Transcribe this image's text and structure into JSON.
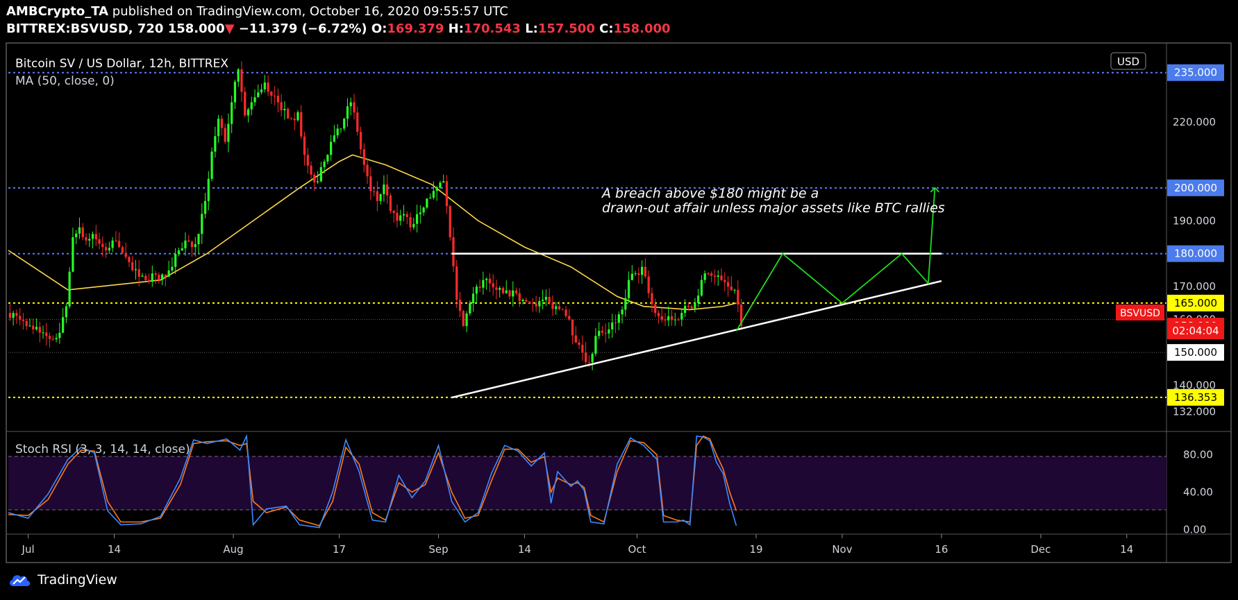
{
  "header": {
    "publisher": "AMBCrypto_TA",
    "published_text": "published on TradingView.com, October 16, 2020 09:55:57 UTC",
    "symbol": "BITTREX:BSVUSD, 720",
    "last": "158.000",
    "change": "−11.379 (−6.72%)",
    "open_label": "O:",
    "open": "169.379",
    "high_label": "H:",
    "high": "170.543",
    "low_label": "L:",
    "low": "157.500",
    "close_label": "C:",
    "close": "158.000"
  },
  "legend": {
    "title": "Bitcoin SV / US Dollar, 12h, BITTREX",
    "ma": "MA (50, close, 0)",
    "stoch": "Stoch RSI (3, 3, 14, 14, close)"
  },
  "annotation": {
    "line1": "A breach above $180 might be a",
    "line2": "drawn-out affair unless major assets like BTC rallies"
  },
  "currency_button": "USD",
  "countdown": "02:04:04",
  "symbol_tag": "BSVUSD",
  "footer": {
    "brand": "TradingView"
  },
  "colors": {
    "up": "#26ff26",
    "down": "#ff2b2b",
    "ma": "#ffd84a",
    "k_line": "#3d8bff",
    "d_line": "#ff7a1a",
    "blue_level": "#5b7cff",
    "yellow_level": "#ffff00",
    "projection": "#1fdc1f",
    "rsi_band": "#1e0733"
  },
  "chart_data": {
    "type": "candlestick",
    "timeframe": "12h",
    "ylim": [
      126,
      244
    ],
    "price_ticks": [
      "220.000",
      "190.000",
      "170.000",
      "160.000",
      "140.000",
      "132.000"
    ],
    "level_labels": [
      {
        "value": 235,
        "label": "235.000",
        "style": "blue"
      },
      {
        "value": 200,
        "label": "200.000",
        "style": "blue"
      },
      {
        "value": 180,
        "label": "180.000",
        "style": "blue"
      },
      {
        "value": 165,
        "label": "165.000",
        "style": "yellow"
      },
      {
        "value": 158,
        "label": "158.000",
        "style": "red"
      },
      {
        "value": 150,
        "label": "150.000",
        "style": "white"
      },
      {
        "value": 136.353,
        "label": "136.353",
        "style": "yellow"
      }
    ],
    "x_ticks": [
      {
        "label": "Jul",
        "date": "2020-07-01"
      },
      {
        "label": "14",
        "date": "2020-07-14"
      },
      {
        "label": "Aug",
        "date": "2020-08-01"
      },
      {
        "label": "17",
        "date": "2020-08-17"
      },
      {
        "label": "Sep",
        "date": "2020-09-01"
      },
      {
        "label": "14",
        "date": "2020-09-14"
      },
      {
        "label": "Oct",
        "date": "2020-10-01"
      },
      {
        "label": "19",
        "date": "2020-10-19"
      },
      {
        "label": "Nov",
        "date": "2020-11-01"
      },
      {
        "label": "16",
        "date": "2020-11-16"
      },
      {
        "label": "Dec",
        "date": "2020-12-01"
      },
      {
        "label": "14",
        "date": "2020-12-14"
      }
    ],
    "xlim_dates": [
      "2020-06-28",
      "2020-12-20"
    ],
    "close_series": [
      [
        "2020-06-28",
        162
      ],
      [
        "2020-06-29",
        160
      ],
      [
        "2020-06-30",
        158
      ],
      [
        "2020-07-01",
        157
      ],
      [
        "2020-07-02",
        156
      ],
      [
        "2020-07-03",
        155
      ],
      [
        "2020-07-04",
        154
      ],
      [
        "2020-07-05",
        156
      ],
      [
        "2020-07-06",
        164
      ],
      [
        "2020-07-07",
        185
      ],
      [
        "2020-07-08",
        188
      ],
      [
        "2020-07-09",
        184
      ],
      [
        "2020-07-10",
        186
      ],
      [
        "2020-07-11",
        183
      ],
      [
        "2020-07-12",
        181
      ],
      [
        "2020-07-13",
        184
      ],
      [
        "2020-07-14",
        182
      ],
      [
        "2020-07-15",
        179
      ],
      [
        "2020-07-16",
        175
      ],
      [
        "2020-07-17",
        173
      ],
      [
        "2020-07-18",
        172
      ],
      [
        "2020-07-19",
        174
      ],
      [
        "2020-07-20",
        172
      ],
      [
        "2020-07-21",
        173
      ],
      [
        "2020-07-22",
        176
      ],
      [
        "2020-07-23",
        181
      ],
      [
        "2020-07-24",
        184
      ],
      [
        "2020-07-25",
        182
      ],
      [
        "2020-07-26",
        186
      ],
      [
        "2020-07-27",
        196
      ],
      [
        "2020-07-28",
        211
      ],
      [
        "2020-07-29",
        221
      ],
      [
        "2020-07-30",
        214
      ],
      [
        "2020-07-31",
        226
      ],
      [
        "2020-08-01",
        236
      ],
      [
        "2020-08-02",
        222
      ],
      [
        "2020-08-03",
        226
      ],
      [
        "2020-08-04",
        229
      ],
      [
        "2020-08-05",
        232
      ],
      [
        "2020-08-06",
        228
      ],
      [
        "2020-08-07",
        226
      ],
      [
        "2020-08-08",
        224
      ],
      [
        "2020-08-09",
        221
      ],
      [
        "2020-08-10",
        223
      ],
      [
        "2020-08-11",
        210
      ],
      [
        "2020-08-12",
        204
      ],
      [
        "2020-08-13",
        202
      ],
      [
        "2020-08-14",
        208
      ],
      [
        "2020-08-15",
        214
      ],
      [
        "2020-08-16",
        218
      ],
      [
        "2020-08-17",
        221
      ],
      [
        "2020-08-18",
        226
      ],
      [
        "2020-08-19",
        217
      ],
      [
        "2020-08-20",
        207
      ],
      [
        "2020-08-21",
        199
      ],
      [
        "2020-08-22",
        196
      ],
      [
        "2020-08-23",
        201
      ],
      [
        "2020-08-24",
        193
      ],
      [
        "2020-08-25",
        190
      ],
      [
        "2020-08-26",
        192
      ],
      [
        "2020-08-27",
        188
      ],
      [
        "2020-08-28",
        192
      ],
      [
        "2020-08-29",
        194
      ],
      [
        "2020-08-30",
        197
      ],
      [
        "2020-08-31",
        200
      ],
      [
        "2020-09-01",
        202
      ],
      [
        "2020-09-02",
        185
      ],
      [
        "2020-09-03",
        166
      ],
      [
        "2020-09-04",
        158
      ],
      [
        "2020-09-05",
        165
      ],
      [
        "2020-09-06",
        170
      ],
      [
        "2020-09-07",
        172
      ],
      [
        "2020-09-08",
        171
      ],
      [
        "2020-09-09",
        169
      ],
      [
        "2020-09-10",
        168
      ],
      [
        "2020-09-11",
        167
      ],
      [
        "2020-09-12",
        168
      ],
      [
        "2020-09-13",
        166
      ],
      [
        "2020-09-14",
        165
      ],
      [
        "2020-09-15",
        164
      ],
      [
        "2020-09-16",
        166
      ],
      [
        "2020-09-17",
        165
      ],
      [
        "2020-09-18",
        164
      ],
      [
        "2020-09-19",
        163
      ],
      [
        "2020-09-20",
        160
      ],
      [
        "2020-09-21",
        153
      ],
      [
        "2020-09-22",
        150
      ],
      [
        "2020-09-23",
        147
      ],
      [
        "2020-09-24",
        155
      ],
      [
        "2020-09-25",
        156
      ],
      [
        "2020-09-26",
        157
      ],
      [
        "2020-09-27",
        159
      ],
      [
        "2020-09-28",
        163
      ],
      [
        "2020-09-29",
        172
      ],
      [
        "2020-09-30",
        174
      ],
      [
        "2020-10-01",
        176
      ],
      [
        "2020-10-02",
        168
      ],
      [
        "2020-10-03",
        162
      ],
      [
        "2020-10-04",
        160
      ],
      [
        "2020-10-05",
        161
      ],
      [
        "2020-10-06",
        160
      ],
      [
        "2020-10-07",
        162
      ],
      [
        "2020-10-08",
        164
      ],
      [
        "2020-10-09",
        165
      ],
      [
        "2020-10-10",
        172
      ],
      [
        "2020-10-11",
        174
      ],
      [
        "2020-10-12",
        173
      ],
      [
        "2020-10-13",
        172
      ],
      [
        "2020-10-14",
        170
      ],
      [
        "2020-10-15",
        169
      ],
      [
        "2020-10-16",
        158
      ]
    ],
    "ma_series": [
      [
        "2020-06-28",
        181
      ],
      [
        "2020-07-07",
        169
      ],
      [
        "2020-07-14",
        170.5
      ],
      [
        "2020-07-21",
        172
      ],
      [
        "2020-07-28",
        180
      ],
      [
        "2020-08-04",
        190
      ],
      [
        "2020-08-11",
        200
      ],
      [
        "2020-08-17",
        208
      ],
      [
        "2020-08-19",
        210
      ],
      [
        "2020-08-24",
        207
      ],
      [
        "2020-08-31",
        201
      ],
      [
        "2020-09-07",
        190
      ],
      [
        "2020-09-14",
        182
      ],
      [
        "2020-09-21",
        176
      ],
      [
        "2020-09-28",
        167
      ],
      [
        "2020-10-02",
        164
      ],
      [
        "2020-10-09",
        163
      ],
      [
        "2020-10-14",
        164
      ],
      [
        "2020-10-16",
        165
      ]
    ],
    "horizontal_levels": [
      {
        "value": 235,
        "style": "blue-dotted"
      },
      {
        "value": 200,
        "style": "blue-dotted"
      },
      {
        "value": 180,
        "style": "blue-dotted"
      },
      {
        "value": 165,
        "style": "yellow-dotted"
      },
      {
        "value": 160,
        "style": "gray-dotted"
      },
      {
        "value": 150,
        "style": "gray-dotted"
      },
      {
        "value": 136.353,
        "style": "yellow-dotted"
      }
    ],
    "trendlines": [
      {
        "name": "resistance",
        "from": [
          "2020-09-03",
          180
        ],
        "to": [
          "2020-11-16",
          180
        ]
      },
      {
        "name": "support",
        "from": [
          "2020-09-03",
          136.3
        ],
        "to": [
          "2020-11-16",
          171.7
        ]
      }
    ],
    "projection_path": [
      [
        "2020-10-16",
        156.5
      ],
      [
        "2020-10-23",
        180
      ],
      [
        "2020-11-01",
        165
      ],
      [
        "2020-11-10",
        180
      ],
      [
        "2020-11-14",
        171
      ],
      [
        "2020-11-15",
        200
      ]
    ],
    "stoch_rsi": {
      "ylim": [
        -5,
        105
      ],
      "ticks": [
        "80.00",
        "40.00",
        "0.00"
      ],
      "band": [
        20,
        80
      ],
      "k": [
        [
          "2020-06-28",
          18
        ],
        [
          "2020-07-01",
          12
        ],
        [
          "2020-07-04",
          38
        ],
        [
          "2020-07-07",
          75
        ],
        [
          "2020-07-09",
          88
        ],
        [
          "2020-07-11",
          82
        ],
        [
          "2020-07-13",
          20
        ],
        [
          "2020-07-15",
          5
        ],
        [
          "2020-07-18",
          6
        ],
        [
          "2020-07-21",
          14
        ],
        [
          "2020-07-24",
          55
        ],
        [
          "2020-07-26",
          96
        ],
        [
          "2020-07-28",
          92
        ],
        [
          "2020-07-31",
          97
        ],
        [
          "2020-08-02",
          85
        ],
        [
          "2020-08-03",
          100
        ],
        [
          "2020-08-04",
          5
        ],
        [
          "2020-08-06",
          22
        ],
        [
          "2020-08-09",
          25
        ],
        [
          "2020-08-11",
          5
        ],
        [
          "2020-08-14",
          2
        ],
        [
          "2020-08-16",
          40
        ],
        [
          "2020-08-18",
          96
        ],
        [
          "2020-08-20",
          62
        ],
        [
          "2020-08-22",
          10
        ],
        [
          "2020-08-24",
          8
        ],
        [
          "2020-08-26",
          58
        ],
        [
          "2020-08-28",
          34
        ],
        [
          "2020-08-30",
          52
        ],
        [
          "2020-09-01",
          90
        ],
        [
          "2020-09-03",
          30
        ],
        [
          "2020-09-05",
          8
        ],
        [
          "2020-09-07",
          18
        ],
        [
          "2020-09-09",
          60
        ],
        [
          "2020-09-11",
          90
        ],
        [
          "2020-09-13",
          84
        ],
        [
          "2020-09-15",
          68
        ],
        [
          "2020-09-17",
          82
        ],
        [
          "2020-09-18",
          28
        ],
        [
          "2020-09-19",
          62
        ],
        [
          "2020-09-21",
          46
        ],
        [
          "2020-09-22",
          52
        ],
        [
          "2020-09-23",
          42
        ],
        [
          "2020-09-24",
          8
        ],
        [
          "2020-09-26",
          6
        ],
        [
          "2020-09-28",
          70
        ],
        [
          "2020-09-30",
          98
        ],
        [
          "2020-10-02",
          90
        ],
        [
          "2020-10-04",
          75
        ],
        [
          "2020-10-05",
          8
        ],
        [
          "2020-10-07",
          8
        ],
        [
          "2020-10-08",
          10
        ],
        [
          "2020-10-09",
          5
        ],
        [
          "2020-10-10",
          100
        ],
        [
          "2020-10-11",
          99
        ],
        [
          "2020-10-12",
          95
        ],
        [
          "2020-10-13",
          72
        ],
        [
          "2020-10-14",
          60
        ],
        [
          "2020-10-15",
          28
        ],
        [
          "2020-10-16",
          4
        ]
      ],
      "d": [
        [
          "2020-06-28",
          16
        ],
        [
          "2020-07-01",
          15
        ],
        [
          "2020-07-04",
          32
        ],
        [
          "2020-07-07",
          70
        ],
        [
          "2020-07-09",
          85
        ],
        [
          "2020-07-11",
          84
        ],
        [
          "2020-07-13",
          30
        ],
        [
          "2020-07-15",
          8
        ],
        [
          "2020-07-18",
          8
        ],
        [
          "2020-07-21",
          12
        ],
        [
          "2020-07-24",
          48
        ],
        [
          "2020-07-26",
          92
        ],
        [
          "2020-07-28",
          94
        ],
        [
          "2020-07-31",
          95
        ],
        [
          "2020-08-02",
          90
        ],
        [
          "2020-08-03",
          92
        ],
        [
          "2020-08-04",
          30
        ],
        [
          "2020-08-06",
          18
        ],
        [
          "2020-08-09",
          24
        ],
        [
          "2020-08-11",
          10
        ],
        [
          "2020-08-14",
          4
        ],
        [
          "2020-08-16",
          30
        ],
        [
          "2020-08-18",
          88
        ],
        [
          "2020-08-20",
          70
        ],
        [
          "2020-08-22",
          18
        ],
        [
          "2020-08-24",
          10
        ],
        [
          "2020-08-26",
          50
        ],
        [
          "2020-08-28",
          40
        ],
        [
          "2020-08-30",
          48
        ],
        [
          "2020-09-01",
          82
        ],
        [
          "2020-09-03",
          40
        ],
        [
          "2020-09-05",
          12
        ],
        [
          "2020-09-07",
          15
        ],
        [
          "2020-09-09",
          52
        ],
        [
          "2020-09-11",
          86
        ],
        [
          "2020-09-13",
          86
        ],
        [
          "2020-09-15",
          72
        ],
        [
          "2020-09-17",
          78
        ],
        [
          "2020-09-18",
          40
        ],
        [
          "2020-09-19",
          55
        ],
        [
          "2020-09-21",
          48
        ],
        [
          "2020-09-22",
          50
        ],
        [
          "2020-09-23",
          45
        ],
        [
          "2020-09-24",
          15
        ],
        [
          "2020-09-26",
          8
        ],
        [
          "2020-09-28",
          62
        ],
        [
          "2020-09-30",
          95
        ],
        [
          "2020-10-02",
          93
        ],
        [
          "2020-10-04",
          80
        ],
        [
          "2020-10-05",
          15
        ],
        [
          "2020-10-07",
          10
        ],
        [
          "2020-10-08",
          9
        ],
        [
          "2020-10-09",
          8
        ],
        [
          "2020-10-10",
          90
        ],
        [
          "2020-10-11",
          100
        ],
        [
          "2020-10-12",
          97
        ],
        [
          "2020-10-13",
          80
        ],
        [
          "2020-10-14",
          65
        ],
        [
          "2020-10-15",
          40
        ],
        [
          "2020-10-16",
          20
        ]
      ]
    }
  }
}
